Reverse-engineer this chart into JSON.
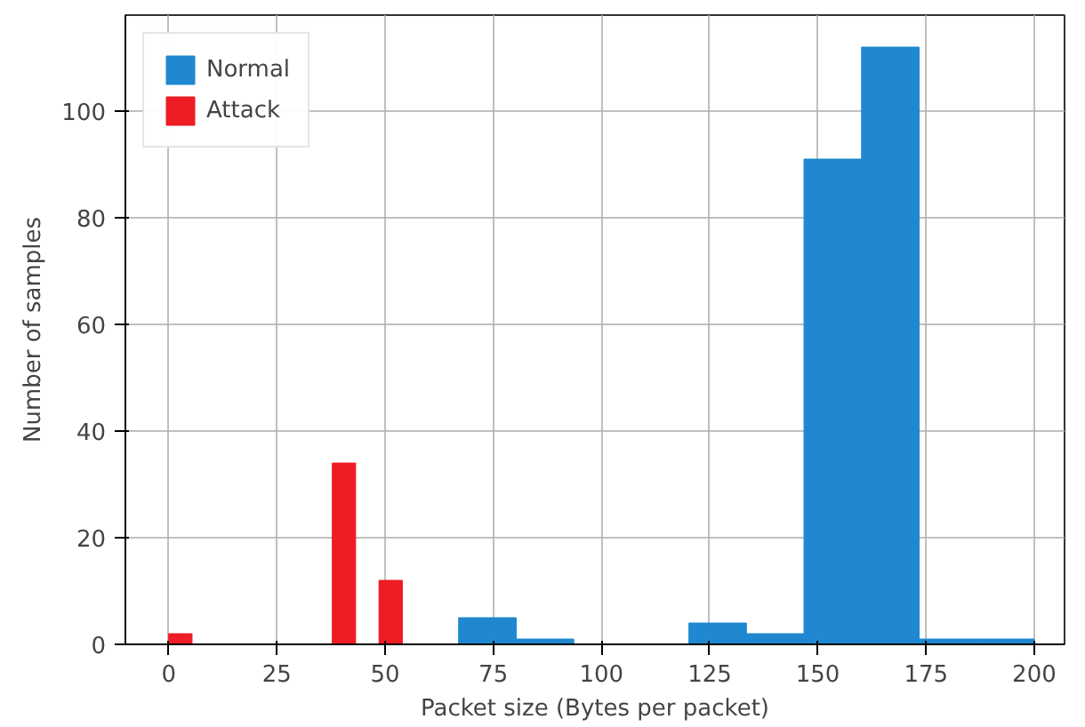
{
  "chart_data": {
    "type": "histogram",
    "xlabel": "Packet size (Bytes per packet)",
    "ylabel": "Number of samples",
    "bins": [
      0,
      5.4,
      10.8,
      16.2,
      21.6,
      27,
      32.4,
      37.8,
      43.2,
      48.6,
      54,
      67,
      80.3,
      93.6,
      106.9,
      120.2,
      133.5,
      146.8,
      160.1,
      173.4,
      186.7,
      200
    ],
    "series": [
      {
        "name": "Normal",
        "color": "#1f88d0",
        "values": [
          null,
          null,
          null,
          null,
          null,
          null,
          null,
          null,
          null,
          null,
          null,
          5,
          1,
          0,
          0,
          4,
          2,
          91,
          112,
          1,
          1
        ]
      },
      {
        "name": "Attack",
        "color": "#ee1c24",
        "values": [
          2,
          0,
          0,
          0,
          0,
          0,
          0,
          34,
          0,
          12,
          null,
          null,
          null,
          null,
          null,
          null,
          null,
          null,
          null,
          null,
          null
        ]
      }
    ],
    "xlim": [
      -10,
      207
    ],
    "ylim": [
      0,
      118
    ],
    "xticks": [
      0,
      25,
      50,
      75,
      100,
      125,
      150,
      175,
      200
    ],
    "yticks": [
      0,
      20,
      40,
      60,
      80,
      100
    ],
    "grid": true,
    "legend": "top left"
  }
}
